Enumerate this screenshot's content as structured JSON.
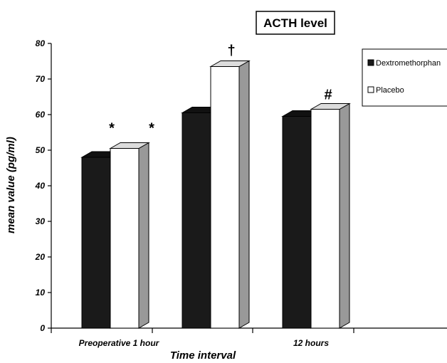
{
  "chart_data": {
    "type": "bar",
    "title": "ACTH level",
    "xlabel": "Time interval",
    "ylabel": "mean value (pg/ml)",
    "ylim": [
      0,
      80
    ],
    "yticks": [
      0,
      10,
      20,
      30,
      40,
      50,
      60,
      70,
      80
    ],
    "categories": [
      "Preoperative 1 hour",
      "",
      "12 hours"
    ],
    "series": [
      {
        "name": "Dextromethorphan",
        "values": [
          48,
          60.5,
          59.5
        ],
        "color": "#1a1a1a"
      },
      {
        "name": "Placebo",
        "values": [
          50.5,
          73.5,
          61.5
        ],
        "color": "#ffffff"
      }
    ],
    "annotations": [
      {
        "category": 0,
        "text": "*",
        "position": "left"
      },
      {
        "category": 0,
        "text": "*",
        "position": "right"
      },
      {
        "category": 1,
        "text": "†",
        "position": "above"
      },
      {
        "category": 2,
        "text": "#",
        "position": "above"
      }
    ],
    "legend_placement": "right",
    "style": "3d-bars"
  }
}
